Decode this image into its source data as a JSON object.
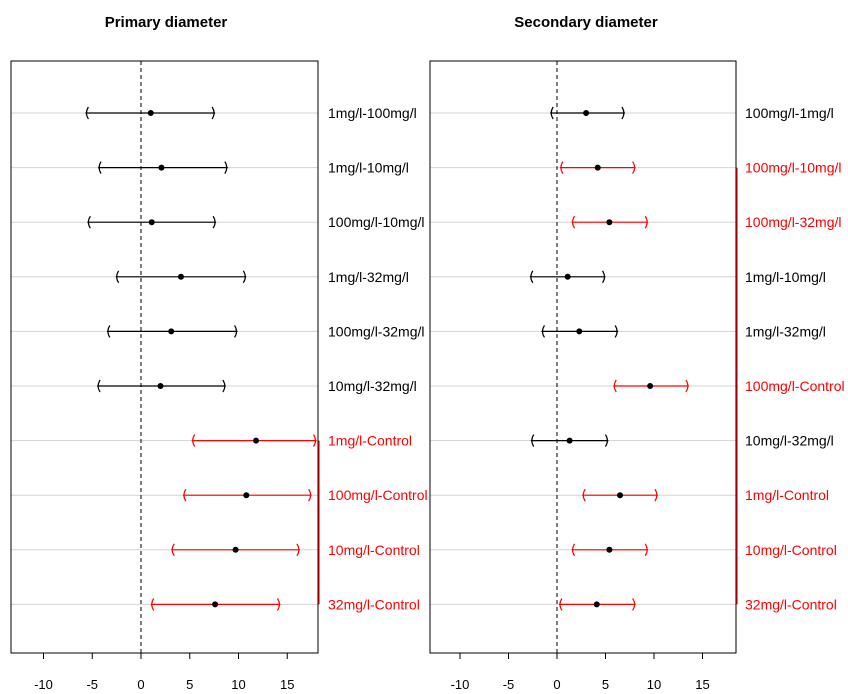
{
  "chart_data": [
    {
      "type": "interval",
      "title": "Primary diameter",
      "xlim": [
        -13.5,
        18
      ],
      "xticks": [
        "-10",
        "-5",
        "0",
        "5",
        "10",
        "15"
      ],
      "reference_line_x": 0,
      "significant_color": "#ff0000",
      "default_color": "#000000",
      "comparisons": [
        {
          "label": "1mg/l-100mg/l",
          "estimate": 1.0,
          "lower": -5.7,
          "upper": 7.6,
          "significant": false
        },
        {
          "label": "1mg/l-10mg/l",
          "estimate": 2.1,
          "lower": -4.4,
          "upper": 8.9,
          "significant": false
        },
        {
          "label": "100mg/l-10mg/l",
          "estimate": 1.1,
          "lower": -5.5,
          "upper": 7.7,
          "significant": false
        },
        {
          "label": "1mg/l-32mg/l",
          "estimate": 4.1,
          "lower": -2.6,
          "upper": 10.8,
          "significant": false
        },
        {
          "label": "100mg/l-32mg/l",
          "estimate": 3.1,
          "lower": -3.5,
          "upper": 9.9,
          "significant": false
        },
        {
          "label": "10mg/l-32mg/l",
          "estimate": 2.0,
          "lower": -4.5,
          "upper": 8.7,
          "significant": false
        },
        {
          "label": "1mg/l-Control",
          "estimate": 11.8,
          "lower": 5.2,
          "upper": 18.0,
          "significant": true
        },
        {
          "label": "100mg/l-Control",
          "estimate": 10.8,
          "lower": 4.3,
          "upper": 17.5,
          "significant": true
        },
        {
          "label": "10mg/l-Control",
          "estimate": 9.7,
          "lower": 3.1,
          "upper": 16.3,
          "significant": true
        },
        {
          "label": "32mg/l-Control",
          "estimate": 7.6,
          "lower": 1.0,
          "upper": 14.3,
          "significant": true
        }
      ]
    },
    {
      "type": "interval",
      "title": "Secondary diameter",
      "xlim": [
        -13.5,
        18
      ],
      "xticks": [
        "-10",
        "-5",
        "0",
        "5",
        "10",
        "15"
      ],
      "reference_line_x": 0,
      "significant_color": "#ff0000",
      "default_color": "#000000",
      "comparisons": [
        {
          "label": "100mg/l-1mg/l",
          "estimate": 3.0,
          "lower": -0.7,
          "upper": 7.0,
          "significant": false
        },
        {
          "label": "100mg/l-10mg/l",
          "estimate": 4.2,
          "lower": 0.3,
          "upper": 8.1,
          "significant": true
        },
        {
          "label": "100mg/l-32mg/l",
          "estimate": 5.4,
          "lower": 1.5,
          "upper": 9.4,
          "significant": true
        },
        {
          "label": "1mg/l-10mg/l",
          "estimate": 1.1,
          "lower": -2.8,
          "upper": 5.0,
          "significant": false
        },
        {
          "label": "1mg/l-32mg/l",
          "estimate": 2.3,
          "lower": -1.6,
          "upper": 6.3,
          "significant": false
        },
        {
          "label": "100mg/l-Control",
          "estimate": 9.6,
          "lower": 5.8,
          "upper": 13.6,
          "significant": true
        },
        {
          "label": "10mg/l-32mg/l",
          "estimate": 1.3,
          "lower": -2.7,
          "upper": 5.3,
          "significant": false
        },
        {
          "label": "1mg/l-Control",
          "estimate": 6.5,
          "lower": 2.6,
          "upper": 10.4,
          "significant": true
        },
        {
          "label": "10mg/l-Control",
          "estimate": 5.4,
          "lower": 1.5,
          "upper": 9.4,
          "significant": true
        },
        {
          "label": "32mg/l-Control",
          "estimate": 4.1,
          "lower": 0.2,
          "upper": 8.1,
          "significant": true
        }
      ]
    }
  ]
}
